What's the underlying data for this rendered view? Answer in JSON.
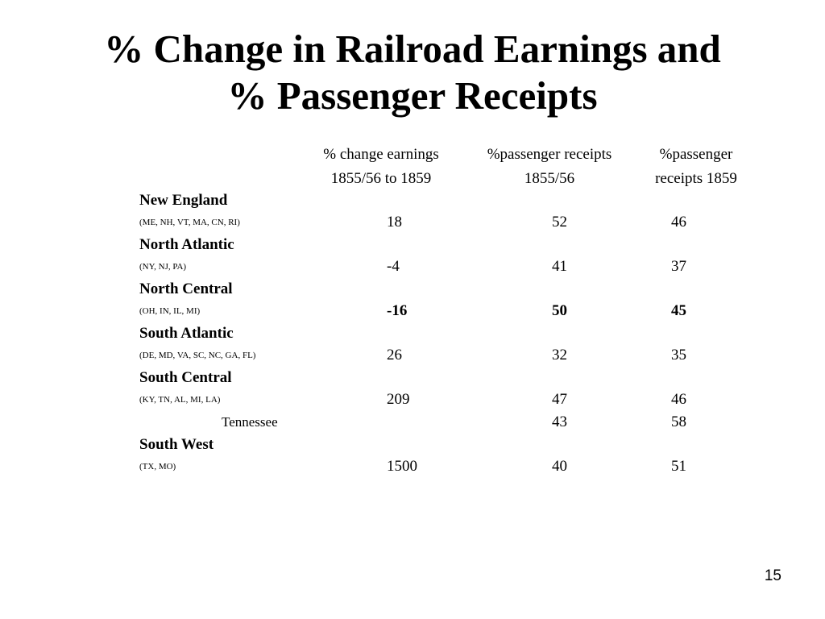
{
  "title": {
    "line1": "% Change in Railroad Earnings and",
    "line2": "% Passenger Receipts"
  },
  "columns": [
    {
      "line1": "% change earnings",
      "line2": "1855/56 to 1859"
    },
    {
      "line1": "%passenger receipts",
      "line2": "1855/56"
    },
    {
      "line1": "%passenger",
      "line2": "receipts 1859"
    }
  ],
  "regions": [
    {
      "name": "New England",
      "states": "(ME, NH, VT, MA, CN, RI)",
      "values": [
        "18",
        "52",
        "46"
      ]
    },
    {
      "name": "North Atlantic",
      "states": "(NY, NJ, PA)",
      "values": [
        "-4",
        "41",
        "37"
      ]
    },
    {
      "name": "North Central",
      "states": "(OH, IN, IL, MI)",
      "values": [
        "-16",
        "50",
        "45"
      ]
    },
    {
      "name": "South Atlantic",
      "states": "(DE, MD, VA, SC, NC, GA, FL)",
      "values": [
        "26",
        "32",
        "35"
      ]
    },
    {
      "name": "South Central",
      "states": "(KY, TN, AL, MI, LA)",
      "values": [
        "209",
        "47",
        "46"
      ]
    },
    {
      "sublabel": "Tennessee",
      "values": [
        "",
        "43",
        "58"
      ]
    },
    {
      "name": "South West",
      "states": "(TX, MO)",
      "values": [
        "1500",
        "40",
        "51"
      ]
    }
  ],
  "page_number": "15"
}
